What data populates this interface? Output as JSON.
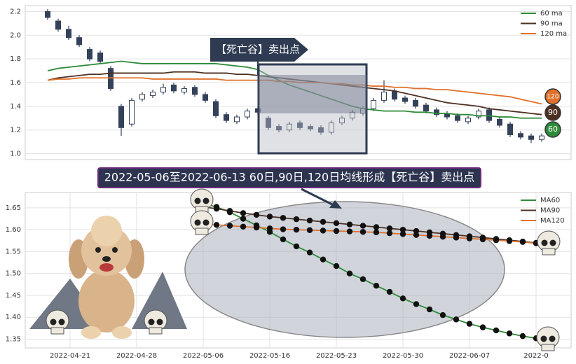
{
  "chart_data": [
    {
      "type": "candlestick",
      "annotation": "【死亡谷】卖出点",
      "open": [
        2.2,
        2.12,
        2.05,
        1.98,
        1.88,
        1.85,
        1.72,
        1.4,
        1.25,
        1.46,
        1.49,
        1.52,
        1.58,
        1.52,
        1.56,
        1.5,
        1.44,
        1.33,
        1.27,
        1.31,
        1.38,
        1.3,
        1.23,
        1.2,
        1.26,
        1.23,
        1.22,
        1.18,
        1.26,
        1.3,
        1.34,
        1.38,
        1.45,
        1.53,
        1.47,
        1.45,
        1.41,
        1.37,
        1.34,
        1.32,
        1.27,
        1.31,
        1.37,
        1.29,
        1.25,
        1.17,
        1.15,
        1.12
      ],
      "high": [
        2.22,
        2.14,
        2.08,
        2.0,
        1.9,
        1.87,
        1.74,
        1.42,
        1.47,
        1.52,
        1.54,
        1.59,
        1.6,
        1.57,
        1.58,
        1.52,
        1.46,
        1.35,
        1.33,
        1.38,
        1.4,
        1.32,
        1.25,
        1.27,
        1.28,
        1.25,
        1.24,
        1.28,
        1.32,
        1.37,
        1.4,
        1.47,
        1.62,
        1.55,
        1.49,
        1.47,
        1.43,
        1.39,
        1.36,
        1.34,
        1.32,
        1.38,
        1.39,
        1.31,
        1.27,
        1.19,
        1.17,
        1.17
      ],
      "low": [
        2.13,
        2.03,
        1.96,
        1.9,
        1.78,
        1.76,
        1.53,
        1.15,
        1.23,
        1.44,
        1.47,
        1.5,
        1.51,
        1.5,
        1.48,
        1.43,
        1.3,
        1.26,
        1.25,
        1.29,
        1.33,
        1.2,
        1.18,
        1.18,
        1.2,
        1.19,
        1.16,
        1.16,
        1.24,
        1.28,
        1.32,
        1.36,
        1.43,
        1.44,
        1.42,
        1.38,
        1.34,
        1.31,
        1.29,
        1.26,
        1.25,
        1.29,
        1.26,
        1.22,
        1.14,
        1.12,
        1.09,
        1.1
      ],
      "close": [
        2.15,
        2.05,
        1.98,
        1.92,
        1.8,
        1.78,
        1.55,
        1.22,
        1.45,
        1.5,
        1.52,
        1.56,
        1.53,
        1.55,
        1.5,
        1.45,
        1.32,
        1.28,
        1.31,
        1.36,
        1.35,
        1.22,
        1.2,
        1.25,
        1.22,
        1.21,
        1.18,
        1.26,
        1.3,
        1.35,
        1.38,
        1.45,
        1.52,
        1.46,
        1.44,
        1.4,
        1.36,
        1.33,
        1.31,
        1.28,
        1.3,
        1.36,
        1.28,
        1.24,
        1.16,
        1.14,
        1.12,
        1.15
      ],
      "up_color": "#ffffff",
      "down_color": "#34415a",
      "series": [
        {
          "name": "60 ma",
          "color": "#2e8b3a",
          "badge": 60,
          "values": [
            1.7,
            1.72,
            1.73,
            1.74,
            1.75,
            1.76,
            1.77,
            1.78,
            1.77,
            1.76,
            1.76,
            1.76,
            1.76,
            1.76,
            1.76,
            1.76,
            1.76,
            1.75,
            1.74,
            1.73,
            1.71,
            1.66,
            1.62,
            1.58,
            1.55,
            1.52,
            1.49,
            1.46,
            1.43,
            1.4,
            1.38,
            1.37,
            1.36,
            1.36,
            1.36,
            1.35,
            1.35,
            1.34,
            1.34,
            1.33,
            1.33,
            1.32,
            1.32,
            1.31,
            1.31,
            1.3,
            1.3,
            1.3
          ]
        },
        {
          "name": "90 ma",
          "color": "#4e3022",
          "badge": 90,
          "values": [
            1.62,
            1.64,
            1.65,
            1.66,
            1.67,
            1.67,
            1.68,
            1.68,
            1.68,
            1.68,
            1.68,
            1.68,
            1.69,
            1.69,
            1.69,
            1.68,
            1.68,
            1.68,
            1.67,
            1.67,
            1.66,
            1.65,
            1.64,
            1.63,
            1.62,
            1.61,
            1.6,
            1.59,
            1.58,
            1.57,
            1.56,
            1.55,
            1.54,
            1.53,
            1.51,
            1.49,
            1.47,
            1.45,
            1.43,
            1.42,
            1.41,
            1.4,
            1.38,
            1.37,
            1.36,
            1.35,
            1.34,
            1.33
          ]
        },
        {
          "name": "120 ma",
          "color": "#e0702a",
          "badge": 120,
          "values": [
            1.62,
            1.63,
            1.63,
            1.64,
            1.64,
            1.64,
            1.64,
            1.64,
            1.64,
            1.64,
            1.63,
            1.63,
            1.63,
            1.63,
            1.63,
            1.63,
            1.63,
            1.62,
            1.62,
            1.62,
            1.62,
            1.62,
            1.61,
            1.61,
            1.6,
            1.6,
            1.6,
            1.59,
            1.59,
            1.58,
            1.58,
            1.57,
            1.57,
            1.56,
            1.56,
            1.55,
            1.55,
            1.54,
            1.54,
            1.53,
            1.52,
            1.51,
            1.5,
            1.49,
            1.48,
            1.46,
            1.44,
            1.42
          ]
        }
      ],
      "ylim": [
        0.95,
        2.25
      ],
      "yticks": [
        {
          "value": 1,
          "label": "1.0"
        },
        1.2,
        1.4,
        1.6,
        1.8,
        {
          "value": 2,
          "label": "2.0"
        },
        2.2
      ],
      "grid": true,
      "legend": "upper right"
    },
    {
      "type": "line",
      "title": "2022-05-06至2022-06-13 60日,90日,120日均线形成【死亡谷】卖出点",
      "categories": [
        "2022-04-21",
        null,
        null,
        null,
        null,
        "2022-04-28",
        null,
        null,
        null,
        null,
        "2022-05-06",
        null,
        null,
        null,
        null,
        "2022-05-16",
        null,
        null,
        null,
        null,
        "2022-05-23",
        null,
        null,
        null,
        null,
        "2022-05-30",
        null,
        null,
        null,
        null,
        "2022-06-07",
        null,
        null,
        null,
        null,
        "2022-0"
      ],
      "series": [
        {
          "name": "MA60",
          "color": "#2e8b3a",
          "values": [
            null,
            null,
            null,
            null,
            null,
            null,
            null,
            null,
            null,
            null,
            1.66,
            1.652,
            1.64,
            1.625,
            1.61,
            1.595,
            1.578,
            1.562,
            1.548,
            1.532,
            1.517,
            1.5,
            1.487,
            1.472,
            1.458,
            1.443,
            1.43,
            1.418,
            1.405,
            1.395,
            1.385,
            1.377,
            1.37,
            1.363,
            1.357,
            1.352
          ]
        },
        {
          "name": "MA90",
          "color": "#4e3022",
          "values": [
            null,
            null,
            null,
            null,
            null,
            null,
            null,
            null,
            null,
            null,
            1.652,
            1.648,
            1.643,
            1.638,
            1.634,
            1.63,
            1.627,
            1.624,
            1.621,
            1.618,
            1.615,
            1.612,
            1.609,
            1.606,
            1.603,
            1.6,
            1.597,
            1.594,
            1.591,
            1.588,
            1.585,
            1.582,
            1.579,
            1.576,
            1.573,
            1.57
          ]
        },
        {
          "name": "MA120",
          "color": "#e0702a",
          "values": [
            null,
            null,
            null,
            null,
            null,
            null,
            null,
            null,
            null,
            null,
            1.612,
            1.611,
            1.609,
            1.607,
            1.605,
            1.603,
            1.601,
            1.6,
            1.599,
            1.598,
            1.597,
            1.596,
            1.595,
            1.594,
            1.592,
            1.59,
            1.588,
            1.586,
            1.584,
            1.582,
            1.58,
            1.578,
            1.576,
            1.574,
            1.572,
            1.569
          ]
        }
      ],
      "marker_color": "#111111",
      "ylim": [
        1.33,
        1.685
      ],
      "yticks": [
        1.35,
        {
          "value": 1.4,
          "label": "1.40"
        },
        1.45,
        {
          "value": 1.5,
          "label": "1.50"
        },
        1.55,
        {
          "value": 1.6,
          "label": "1.60"
        },
        1.65
      ],
      "grid": true,
      "legend": "upper right"
    }
  ]
}
